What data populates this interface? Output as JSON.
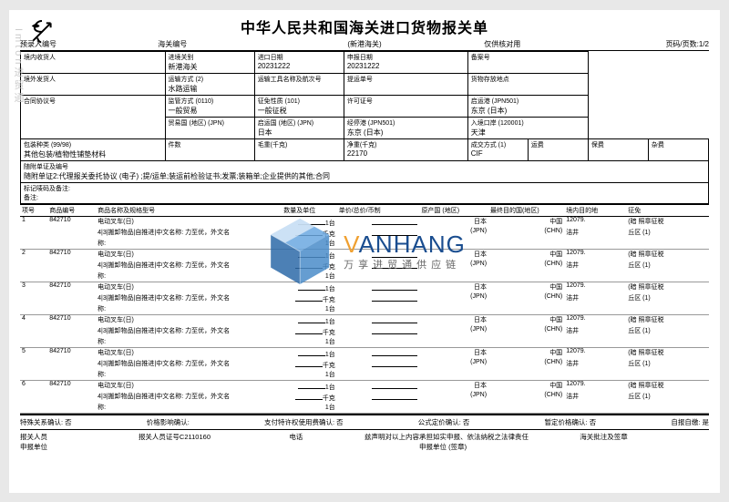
{
  "doc_title": "中华人民共和国海关进口货物报关单",
  "vert_wm": "Imton进贸通",
  "topline": {
    "prerecord": "预录入编号",
    "customs_no": "海关编号",
    "port_name": "(新港海关)",
    "check": "仅供核对用",
    "page": "页码/页数:1/2"
  },
  "header": {
    "consignee_in": "境内收货人",
    "entry_port": "进境关别",
    "entry_port_val": "新港海关",
    "import_date": "进口日期",
    "import_date_val": "20231222",
    "decl_date": "申报日期",
    "decl_date_val": "20231222",
    "record_no": "备案号",
    "consignor_out": "境外发货人",
    "transport": "运输方式 (2)",
    "transport_val": "水路运输",
    "vessel": "运输工具名称及航次号",
    "bill_no": "提运单号",
    "storage": "货物存放地点",
    "supervision": "监管方式 (0110)",
    "supervision_val": "一般贸易",
    "exemption": "征免性质 (101)",
    "exemption_val": "一般征税",
    "license": "许可证号",
    "depart_port": "启运港 (JPN501)",
    "depart_port_val": "东京 (日本)",
    "contract": "合同协议号",
    "trade_country": "贸易国 (地区) (JPN)",
    "depart_country": "启运国 (地区) (JPN)",
    "depart_country_val": "日本",
    "transit": "经停港 (JPN501)",
    "transit_val": "东京 (日本)",
    "entry_cust": "入境口岸 (120001)",
    "entry_cust_val": "天津",
    "pkg_type": "包装种类 (99/98)",
    "pkg_type_val": "其他包装/植物性铺垫材料",
    "pieces": "件数",
    "gross": "毛重(千克)",
    "net": "净重(千克)",
    "net_val": "22170",
    "deal": "成交方式 (1)",
    "deal_val": "CIF",
    "freight": "运费",
    "insurance": "保费",
    "misc": "杂费",
    "attach": "随附单证及编号",
    "attach_val": "随附单证2:代理报关委托协议 (电子) ;提/运单;装运前检验证书;发票;装箱单;企业提供的其他;合同",
    "mark": "标记唛码及备注:",
    "remark": "备注:"
  },
  "items_header": {
    "no": "项号",
    "code": "商品编号",
    "name": "商品名称及规格型号",
    "qty": "数量及单位",
    "price": "单价/总价/币制",
    "origin": "原产国 (地区)",
    "final": "最终目的国(地区)",
    "dest": "境内目的地",
    "exempt": "征免"
  },
  "items": [
    {
      "no": "1",
      "code": "842710",
      "name1": "电动叉车(日)",
      "name2": "4|3|搬卸物品|自推进|中文名称: 力至优，外文名",
      "name3": "称:",
      "qty1": "1台",
      "qty2": "千克",
      "qty3": "1台",
      "origin": "日本",
      "origin2": "(JPN)",
      "final": "中国",
      "final2": "(CHN)",
      "dest": "12079.",
      "dest2": "洁井",
      "exempt": "(暗 照章征税",
      "exempt2": "丘区     (1)"
    },
    {
      "no": "2",
      "code": "842710",
      "name1": "电动叉车(日)",
      "name2": "4|3|搬卸物品|自推进|中文名称: 力至优，外文名",
      "name3": "称:",
      "qty1": "1台",
      "qty2": "千克",
      "qty3": "1台",
      "origin": "日本",
      "origin2": "(JPN)",
      "final": "中国",
      "final2": "(CHN)",
      "dest": "12079.",
      "dest2": "洁井",
      "exempt": "(暗 照章征税",
      "exempt2": "丘区     (1)"
    },
    {
      "no": "3",
      "code": "842710",
      "name1": "电动叉车(日)",
      "name2": "4|3|搬卸物品|自推进|中文名称: 力至优，外文名",
      "name3": "称:",
      "qty1": "1台",
      "qty2": "千克",
      "qty3": "1台",
      "origin": "日本",
      "origin2": "(JPN)",
      "final": "中国",
      "final2": "(CHN)",
      "dest": "12079.",
      "dest2": "洁井",
      "exempt": "(暗 照章征税",
      "exempt2": "丘区     (1)"
    },
    {
      "no": "4",
      "code": "842710",
      "name1": "电动叉车(日)",
      "name2": "4|3|搬卸物品|自推进|中文名称: 力至优，外文名",
      "name3": "称:",
      "qty1": "1台",
      "qty2": "千克",
      "qty3": "1台",
      "origin": "日本",
      "origin2": "(JPN)",
      "final": "中国",
      "final2": "(CHN)",
      "dest": "12079.",
      "dest2": "洁井",
      "exempt": "(暗 照章征税",
      "exempt2": "丘区     (1)"
    },
    {
      "no": "5",
      "code": "842710",
      "name1": "电动叉车(日)",
      "name2": "4|3|搬卸物品|自推进|中文名称: 力至优，外文名",
      "name3": "称:",
      "qty1": "1台",
      "qty2": "千克",
      "qty3": "1台",
      "origin": "日本",
      "origin2": "(JPN)",
      "final": "中国",
      "final2": "(CHN)",
      "dest": "12079.",
      "dest2": "洁井",
      "exempt": "(暗 照章征税",
      "exempt2": "丘区     (1)"
    },
    {
      "no": "6",
      "code": "842710",
      "name1": "电动叉车(日)",
      "name2": "4|3|搬卸物品|自推进|中文名称: 力至优，外文名",
      "name3": "称:",
      "qty1": "1台",
      "qty2": "千克",
      "qty3": "1台",
      "origin": "日本",
      "origin2": "(JPN)",
      "final": "中国",
      "final2": "(CHN)",
      "dest": "12079.",
      "dest2": "洁井",
      "exempt": "(暗 照章征税",
      "exempt2": "丘区     (1)"
    }
  ],
  "footer": {
    "special": "特殊关系确认: 否",
    "price_inf": "价格影响确认:",
    "royalty": "支付特许权使用费确认: 否",
    "formula": "公式定价确认: 否",
    "provisional": "暂定价格确认: 否",
    "self_decl": "自报自缴: 是"
  },
  "declare": {
    "declarant": "报关人员",
    "cert": "报关人员证号C2110160",
    "phone": "电话",
    "affirm": "兹声明对以上内容承担如实申报、依法纳税之法律责任",
    "unit": "申报单位 (签章)",
    "customs_note": "海关批注及签章",
    "decl_unit": "申报单位"
  },
  "wm": {
    "name_en_v": "V",
    "name_en_rest": "ANHANG",
    "name_cn": "万享进贸通供应链"
  }
}
